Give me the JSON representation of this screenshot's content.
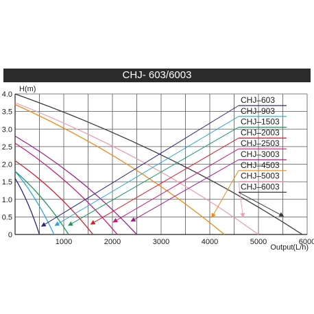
{
  "chart_data": {
    "type": "line",
    "title": "CHJ- 603/6003",
    "xlabel": "Output(L/h)",
    "ylabel": "H(m)",
    "xlim": [
      0,
      6000
    ],
    "ylim": [
      0,
      4.0
    ],
    "x_ticks": [
      "1000",
      "2000",
      "3000",
      "4000",
      "5000",
      "6000"
    ],
    "y_ticks": [
      "0",
      "0.5",
      "1.0",
      "1.5",
      "2.0",
      "2.5",
      "3.0",
      "3.5",
      "4.0"
    ],
    "grid": true,
    "legend_position": "right",
    "series": [
      {
        "name": "CHJ–603",
        "color": "#2a2a7a",
        "x": [
          0,
          500
        ],
        "y": [
          1.6,
          0
        ]
      },
      {
        "name": "CHJ–903",
        "color": "#2aa7d8",
        "x": [
          0,
          800
        ],
        "y": [
          1.8,
          0
        ]
      },
      {
        "name": "CHJ–1503",
        "color": "#1a9a5a",
        "x": [
          0,
          1100
        ],
        "y": [
          1.8,
          0
        ]
      },
      {
        "name": "CHJ–2003",
        "color": "#d81a2a",
        "x": [
          0,
          1600
        ],
        "y": [
          2.1,
          0
        ]
      },
      {
        "name": "CHJ–2503",
        "color": "#c81a7a",
        "x": [
          0,
          2100
        ],
        "y": [
          2.6,
          0
        ]
      },
      {
        "name": "CHJ–3003",
        "color": "#a01a8a",
        "x": [
          0,
          2500
        ],
        "y": [
          2.8,
          0
        ]
      },
      {
        "name": "CHJ–4503",
        "color": "#f08a1a",
        "x": [
          0,
          4300
        ],
        "y": [
          3.7,
          0
        ]
      },
      {
        "name": "CHJ–5003",
        "color": "#f0a0b0",
        "x": [
          0,
          5000
        ],
        "y": [
          3.75,
          0
        ]
      },
      {
        "name": "CHJ–6003",
        "color": "#3a3a3a",
        "x": [
          0,
          5900
        ],
        "y": [
          4.0,
          0
        ]
      }
    ]
  }
}
